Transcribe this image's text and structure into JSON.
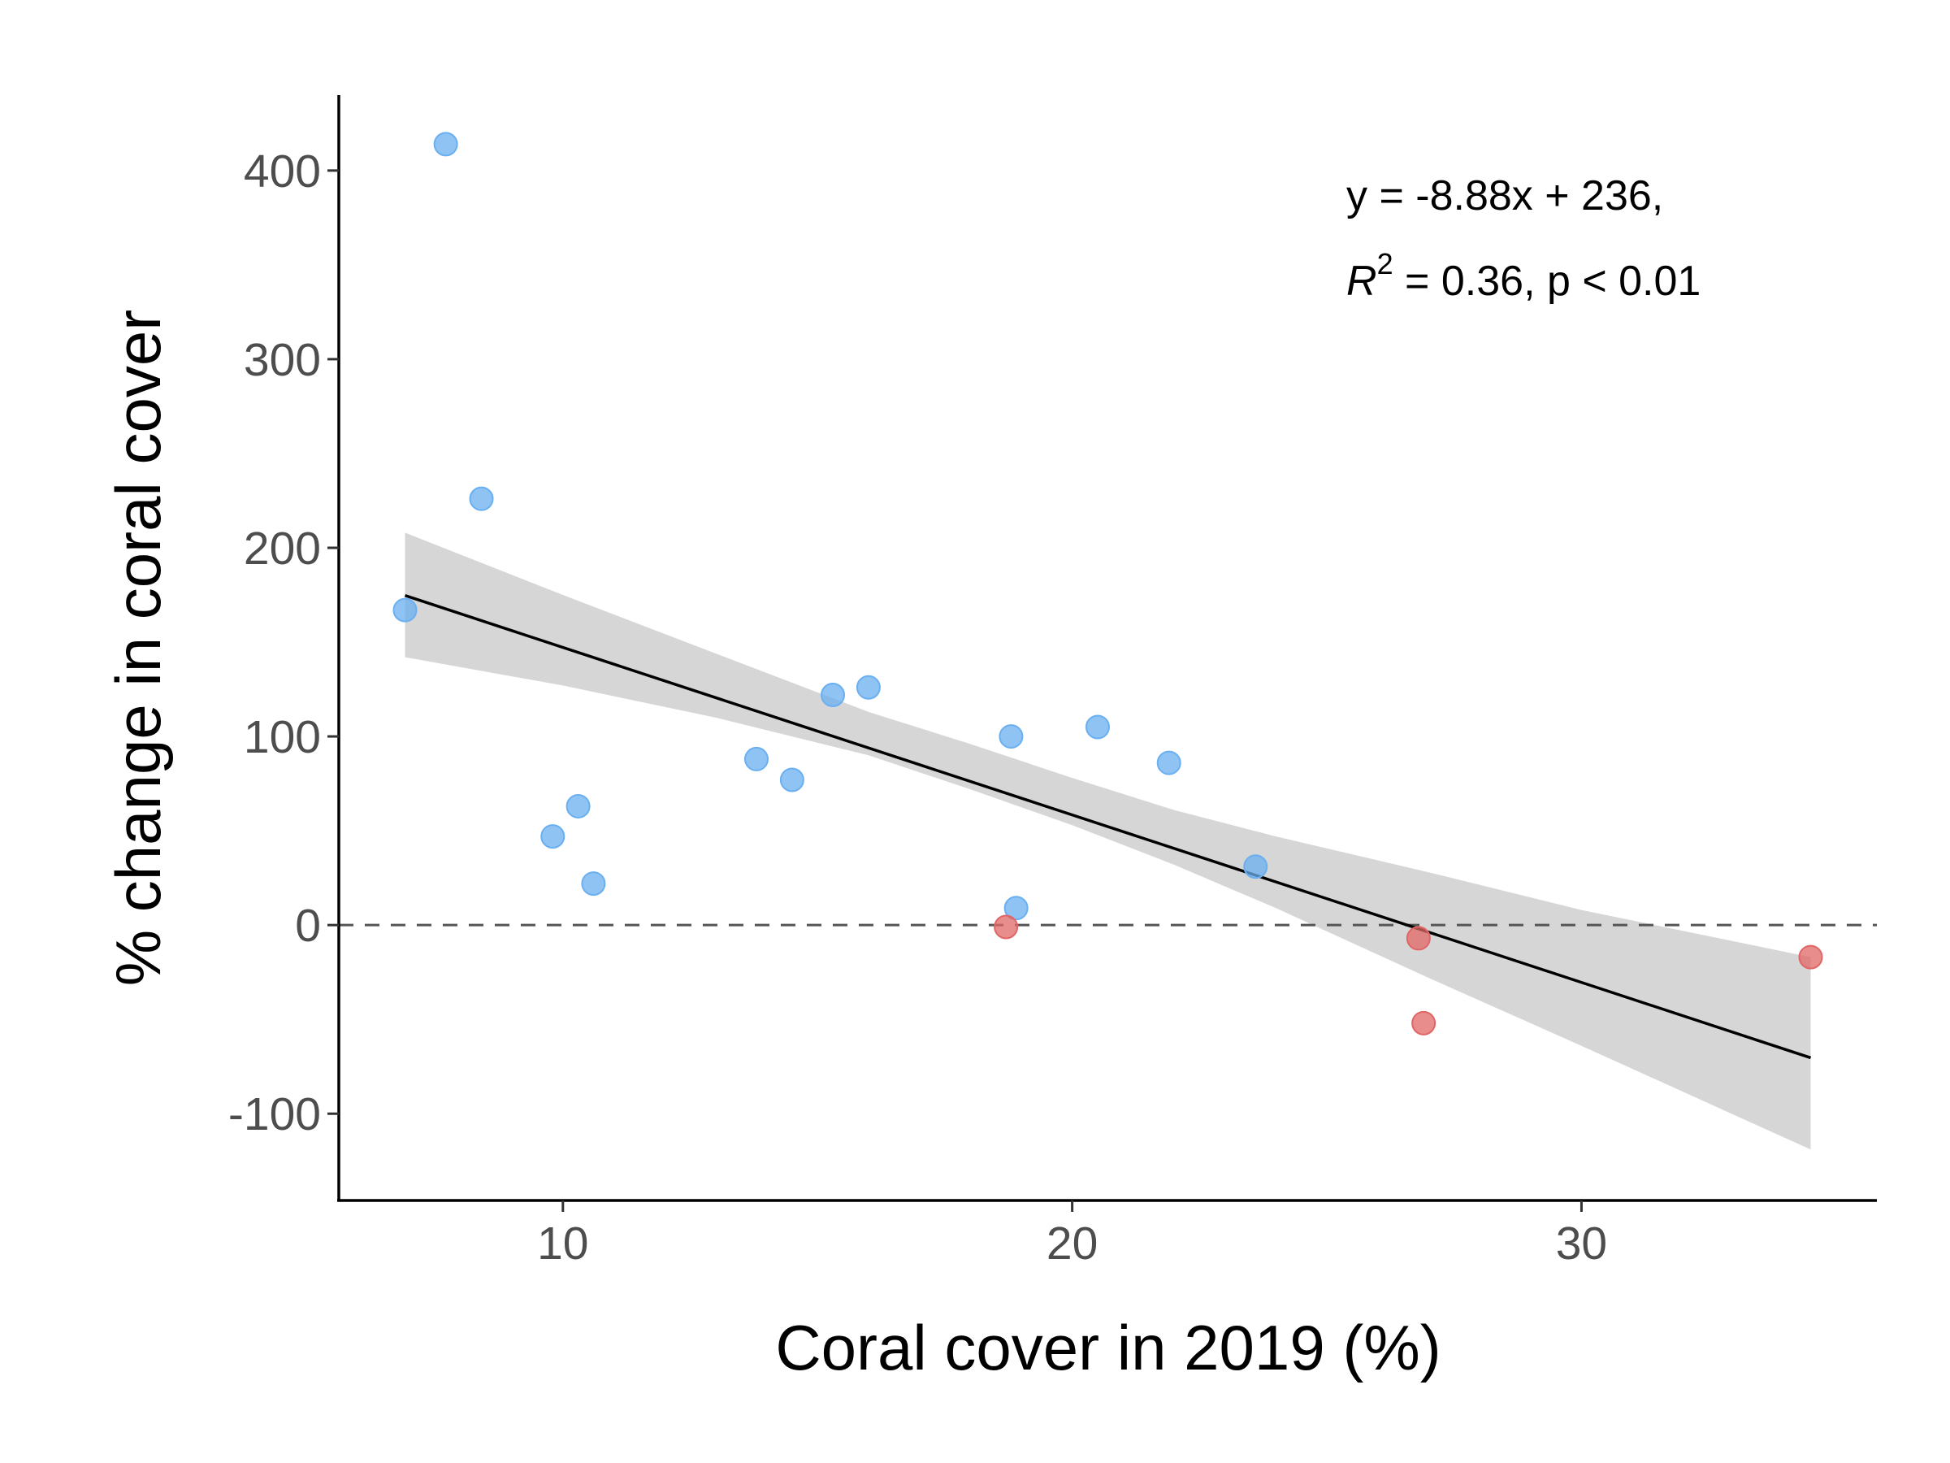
{
  "chart_data": {
    "type": "scatter",
    "title": "",
    "xlabel": "Coral cover in 2019 (%)",
    "ylabel": "% change in coral cover",
    "xlim": [
      5.6,
      35.8
    ],
    "ylim": [
      -146,
      440
    ],
    "x_ticks": [
      10,
      20,
      30
    ],
    "y_ticks": [
      -100,
      0,
      100,
      200,
      300,
      400
    ],
    "x_tick_labels": [
      "10",
      "20",
      "30"
    ],
    "y_tick_labels": [
      "-100",
      "0",
      "100",
      "200",
      "300",
      "400"
    ],
    "grid": false,
    "reference_line": {
      "y": 0,
      "style": "dashed"
    },
    "series": [
      {
        "color": "#6aaff0",
        "points": [
          {
            "x": 7.7,
            "y": 414
          },
          {
            "x": 8.4,
            "y": 226
          },
          {
            "x": 6.9,
            "y": 167
          },
          {
            "x": 9.8,
            "y": 47
          },
          {
            "x": 10.3,
            "y": 63
          },
          {
            "x": 10.6,
            "y": 22
          },
          {
            "x": 13.8,
            "y": 88
          },
          {
            "x": 14.5,
            "y": 77
          },
          {
            "x": 15.3,
            "y": 122
          },
          {
            "x": 16.0,
            "y": 126
          },
          {
            "x": 18.8,
            "y": 100
          },
          {
            "x": 18.9,
            "y": 9
          },
          {
            "x": 20.5,
            "y": 105
          },
          {
            "x": 21.9,
            "y": 86
          },
          {
            "x": 23.6,
            "y": 31
          }
        ]
      },
      {
        "color": "#e06666",
        "points": [
          {
            "x": 18.7,
            "y": -1
          },
          {
            "x": 26.8,
            "y": -7
          },
          {
            "x": 26.9,
            "y": -52
          },
          {
            "x": 34.5,
            "y": -17
          }
        ]
      }
    ],
    "fit": {
      "slope": -8.88,
      "intercept": 236,
      "x_range": [
        6.9,
        34.5
      ],
      "line_color": "#000000",
      "band_color": "#d6d6d6",
      "band": [
        {
          "x": 6.9,
          "lo": 142,
          "hi": 208
        },
        {
          "x": 10,
          "lo": 127,
          "hi": 175
        },
        {
          "x": 13,
          "lo": 110,
          "hi": 144
        },
        {
          "x": 16,
          "lo": 90,
          "hi": 113
        },
        {
          "x": 18,
          "lo": 72,
          "hi": 96
        },
        {
          "x": 20,
          "lo": 53,
          "hi": 78
        },
        {
          "x": 22,
          "lo": 32,
          "hi": 61
        },
        {
          "x": 24,
          "lo": 9,
          "hi": 47
        },
        {
          "x": 27,
          "lo": -28,
          "hi": 28
        },
        {
          "x": 30,
          "lo": -64,
          "hi": 8
        },
        {
          "x": 34.5,
          "lo": -119,
          "hi": -17
        }
      ]
    },
    "annotation": {
      "line1": "y = -8.88x + 236,",
      "r_symbol": "R",
      "r_sup": "2",
      "line2_rest": " = 0.36, p < 0.01"
    }
  }
}
